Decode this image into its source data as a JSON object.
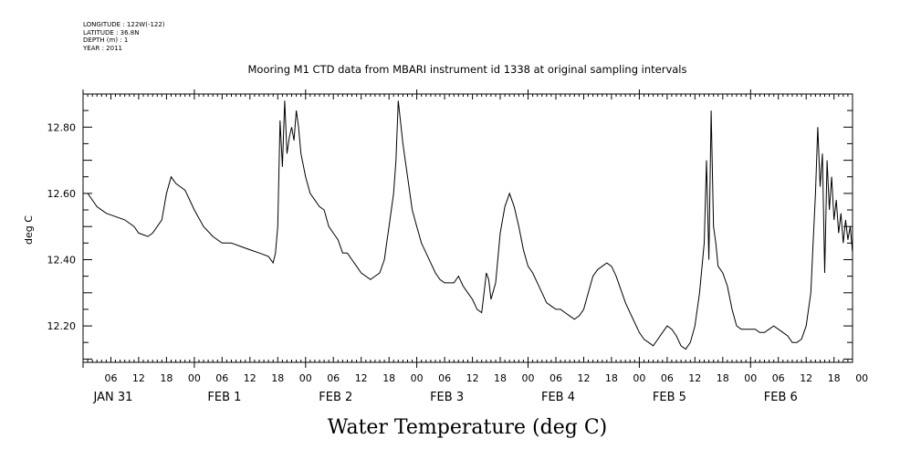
{
  "metadata": {
    "longitude": "LONGITUDE : 122W(-122)",
    "latitude": "LATITUDE : 36.8N",
    "depth": "DEPTH (m) : 1",
    "year": "YEAR : 2011"
  },
  "chart_data": {
    "type": "line",
    "title": "Mooring M1 CTD data from MBARI instrument id 1338 at original sampling intervals",
    "xlabel": "Water Temperature (deg C)",
    "ylabel": "deg C",
    "ylim": [
      12.09,
      12.9
    ],
    "xlim_hours": [
      0,
      166
    ],
    "y_ticks": [
      "12.20",
      "12.40",
      "12.60",
      "12.80"
    ],
    "x_hour_ticks": [
      "06",
      "12",
      "18",
      "00",
      "06",
      "12",
      "18",
      "00",
      "06",
      "12",
      "18",
      "00",
      "06",
      "12",
      "18",
      "00",
      "06",
      "12",
      "18",
      "00",
      "06",
      "12",
      "18",
      "00",
      "06",
      "12",
      "18",
      "00"
    ],
    "day_labels": [
      "JAN 31",
      "FEB  1",
      "FEB  2",
      "FEB  3",
      "FEB  4",
      "FEB  5",
      "FEB  6"
    ],
    "series": [
      {
        "x_hours": [
          1,
          3,
          5,
          7,
          9,
          11,
          12,
          14,
          15,
          17,
          18,
          19,
          20,
          21,
          22,
          23,
          24,
          26,
          28,
          30,
          32,
          34,
          36,
          38,
          40,
          41,
          41.5,
          42,
          42.5,
          43,
          43.5,
          44,
          44.5,
          45,
          45.5,
          46,
          46.5,
          47,
          48,
          49,
          50,
          51,
          52,
          53,
          54,
          55,
          56,
          57,
          58,
          59,
          60,
          62,
          63,
          64,
          65,
          65.5,
          66,
          66.5,
          67,
          67.5,
          68,
          69,
          70,
          71,
          72,
          73,
          74,
          75,
          76,
          77,
          78,
          79,
          80,
          81,
          82,
          83,
          84,
          85,
          86,
          86.5,
          87,
          87.5,
          88,
          89,
          90,
          91,
          92,
          93,
          94,
          95,
          96,
          97,
          98,
          99,
          100,
          101,
          102,
          103,
          104,
          105,
          106,
          107,
          108,
          109,
          110,
          111,
          112,
          113,
          114,
          115,
          116,
          117,
          118,
          119,
          120,
          121,
          122,
          123,
          124,
          125,
          126,
          127,
          128,
          129,
          130,
          131,
          132,
          133,
          134,
          134.5,
          135,
          135.5,
          136,
          136.5,
          137,
          138,
          139,
          140,
          141,
          142,
          143,
          144,
          145,
          146,
          147,
          148,
          149,
          150,
          151,
          152,
          153,
          154,
          155,
          156,
          157,
          157.5,
          158,
          158.5,
          159,
          159.5,
          160,
          160.5,
          161,
          161.5,
          162,
          162.5,
          163,
          163.5,
          164,
          164.5,
          165,
          165.5,
          166
        ],
        "values": [
          12.6,
          12.56,
          12.54,
          12.53,
          12.52,
          12.5,
          12.48,
          12.47,
          12.48,
          12.52,
          12.6,
          12.65,
          12.63,
          12.62,
          12.61,
          12.58,
          12.55,
          12.5,
          12.47,
          12.45,
          12.45,
          12.44,
          12.43,
          12.42,
          12.41,
          12.39,
          12.42,
          12.5,
          12.82,
          12.68,
          12.88,
          12.72,
          12.77,
          12.8,
          12.76,
          12.85,
          12.8,
          12.72,
          12.65,
          12.6,
          12.58,
          12.56,
          12.55,
          12.5,
          12.48,
          12.46,
          12.42,
          12.42,
          12.4,
          12.38,
          12.36,
          12.34,
          12.35,
          12.36,
          12.4,
          12.45,
          12.5,
          12.55,
          12.6,
          12.7,
          12.88,
          12.75,
          12.65,
          12.55,
          12.5,
          12.45,
          12.42,
          12.39,
          12.36,
          12.34,
          12.33,
          12.33,
          12.33,
          12.35,
          12.32,
          12.3,
          12.28,
          12.25,
          12.24,
          12.3,
          12.36,
          12.34,
          12.28,
          12.33,
          12.48,
          12.56,
          12.6,
          12.56,
          12.5,
          12.43,
          12.38,
          12.36,
          12.33,
          12.3,
          12.27,
          12.26,
          12.25,
          12.25,
          12.24,
          12.23,
          12.22,
          12.23,
          12.25,
          12.3,
          12.35,
          12.37,
          12.38,
          12.39,
          12.38,
          12.35,
          12.31,
          12.27,
          12.24,
          12.21,
          12.18,
          12.16,
          12.15,
          12.14,
          12.16,
          12.18,
          12.2,
          12.19,
          12.17,
          12.14,
          12.13,
          12.15,
          12.2,
          12.3,
          12.45,
          12.7,
          12.4,
          12.85,
          12.5,
          12.45,
          12.38,
          12.36,
          12.32,
          12.25,
          12.2,
          12.19,
          12.19,
          12.19,
          12.19,
          12.18,
          12.18,
          12.19,
          12.2,
          12.19,
          12.18,
          12.17,
          12.15,
          12.15,
          12.16,
          12.2,
          12.3,
          12.45,
          12.6,
          12.8,
          12.62,
          12.72,
          12.36,
          12.7,
          12.55,
          12.65,
          12.52,
          12.58,
          12.48,
          12.54,
          12.45,
          12.52,
          12.46,
          12.5,
          12.42
        ]
      }
    ]
  }
}
